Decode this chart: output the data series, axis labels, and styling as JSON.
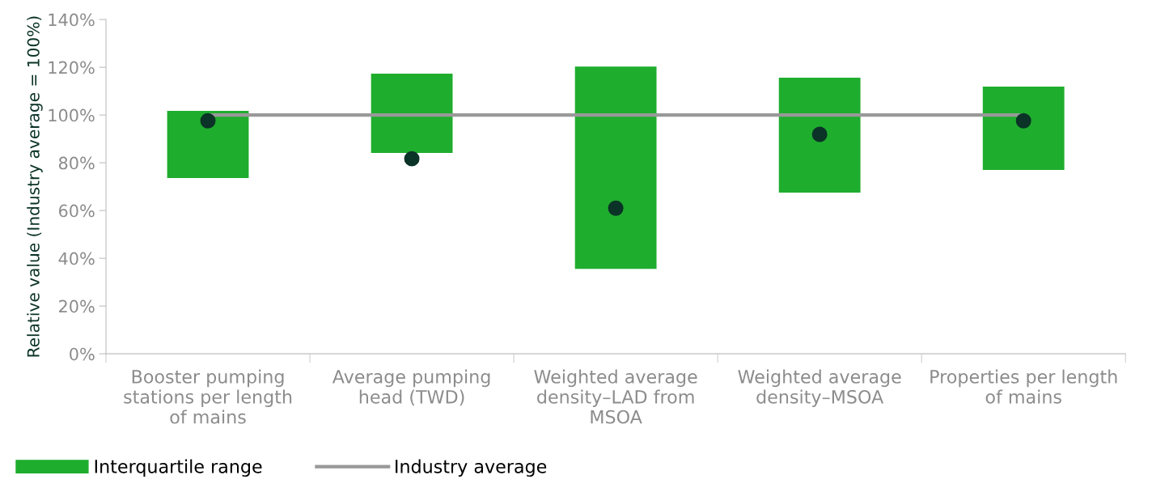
{
  "chart_data": {
    "type": "bar",
    "ylabel": "Relative value (Industry average = 100%)",
    "categories": [
      "Booster pumping\nstations per length\nof mains",
      "Average pumping\nhead (TWD)",
      "Weighted average\ndensity–LAD from\nMSOA",
      "Weighted average\ndensity–MSOA",
      "Properties per length\nof mains"
    ],
    "series": [
      {
        "name": "Interquartile range",
        "color": "#1fad2e",
        "base": [
          73.6,
          84.1,
          35.6,
          67.5,
          77.0
        ],
        "values": [
          28.1,
          33.2,
          84.7,
          48.1,
          34.9
        ]
      },
      {
        "name": "Industry average",
        "type": "line",
        "color": "#999999",
        "values": [
          100,
          100,
          100,
          100,
          100
        ]
      },
      {
        "type": "scatter",
        "marker": "circle",
        "color": "#0b3327",
        "values": [
          97.6,
          81.7,
          61.0,
          91.9,
          97.6
        ]
      }
    ],
    "ylim": [
      0,
      140
    ],
    "yticks": [
      {
        "value": 0,
        "label": "0%"
      },
      {
        "value": 20,
        "label": "20%"
      },
      {
        "value": 40,
        "label": "40%"
      },
      {
        "value": 60,
        "label": "60%"
      },
      {
        "value": 80,
        "label": "80%"
      },
      {
        "value": 100,
        "label": "100%"
      },
      {
        "value": 120,
        "label": "120%"
      },
      {
        "value": 140,
        "label": "140%"
      }
    ],
    "grid": false,
    "legend": "bottom left"
  }
}
